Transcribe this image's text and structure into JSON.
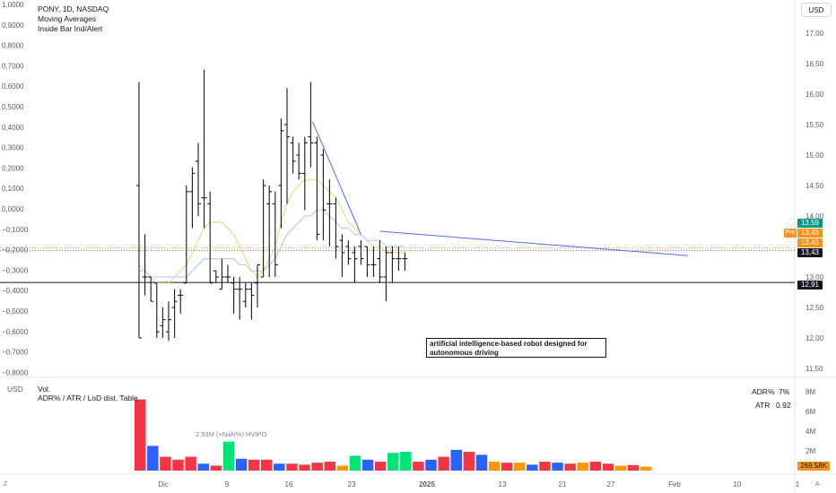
{
  "header": {
    "symbol_line": "PONY, 1D, NASDAQ",
    "indicator_1": "Moving Averages",
    "indicator_2": "Inside Bar Ind/Alert",
    "currency_button": "USD"
  },
  "annotation_text": "artificial intelligence-based robot designed for autonomous driving",
  "volume_pane": {
    "currency": "USD",
    "title": "Vol.",
    "subtitle": "ADR% / ATR / LoD dist. Table",
    "adr_label": "ADR%",
    "adr_value": "7%",
    "atr_label": "ATR",
    "atr_value": "0.92",
    "hvipo_label": "2.93M (+NaN%) HVIPO",
    "last_volume_tag": "269.58K"
  },
  "price_tags": [
    {
      "text": "13,59",
      "color": "#089981"
    },
    {
      "text": "13,48",
      "color": "#f7931a",
      "prefix": "Pre"
    },
    {
      "text": "13,45",
      "color": "#f7931a"
    },
    {
      "text": "13,43",
      "color": "#131722"
    },
    {
      "text": "12,91",
      "color": "#131722"
    }
  ],
  "colors": {
    "bar": "#131722",
    "ma_fast": "#f5d26b",
    "ma_mid": "#b5e3b0",
    "ma_slow": "#a8c6f0",
    "trendline": "#4a6cf7",
    "vol_red": "#f23645",
    "vol_blue": "#2962ff",
    "vol_green": "#00e676",
    "vol_orange": "#ff9800"
  },
  "bottom_bar": {
    "left_icon": "Z",
    "right_icon": "A"
  },
  "chart_data": [
    {
      "type": "ohlc",
      "title": "PONY, 1D, NASDAQ",
      "right_axis_ticks": [
        "17,00",
        "16,50",
        "16,00",
        "15,50",
        "15,00",
        "14,50",
        "14,00",
        "13,00",
        "12,50",
        "12,00",
        "11,50"
      ],
      "left_axis_ticks": [
        "1,0000",
        "0,9000",
        "0,8000",
        "0,7000",
        "0,6000",
        "0,5000",
        "0,4000",
        "0,3000",
        "0,2000",
        "0,1000",
        "0,0000",
        "−0,1000",
        "−0,2000",
        "−0,3000",
        "−0,4000",
        "−0,5000",
        "−0,6000",
        "−0,7000",
        "−0,8000"
      ],
      "x_tick_labels": [
        "Dic",
        "9",
        "16",
        "23",
        "2025",
        "13",
        "21",
        "27",
        "Feb",
        "10",
        "1"
      ],
      "ylim": [
        11.4,
        17.3
      ],
      "ohlc": [
        [
          14.5,
          16.2,
          12.0,
          12.0
        ],
        [
          13.0,
          13.7,
          12.7,
          13.0
        ],
        [
          13.0,
          13.0,
          12.6,
          12.6
        ],
        [
          12.9,
          12.9,
          12.0,
          12.1
        ],
        [
          12.2,
          12.5,
          12.0,
          12.3
        ],
        [
          12.1,
          12.6,
          11.95,
          12.3
        ],
        [
          12.5,
          12.8,
          12.0,
          12.6
        ],
        [
          12.7,
          12.8,
          12.4,
          12.7
        ],
        [
          12.9,
          14.5,
          12.9,
          14.4
        ],
        [
          14.4,
          14.8,
          13.8,
          14.7
        ],
        [
          14.9,
          15.2,
          14.0,
          14.2
        ],
        [
          14.3,
          16.4,
          13.8,
          14.3
        ],
        [
          14.2,
          14.4,
          12.9,
          12.9
        ],
        [
          13.1,
          13.1,
          12.9,
          13.0
        ],
        [
          12.8,
          13.3,
          12.8,
          13.0
        ],
        [
          13.0,
          13.2,
          12.9,
          13.0
        ],
        [
          12.9,
          13.0,
          12.4,
          12.8
        ],
        [
          12.8,
          13.0,
          12.3,
          12.8
        ],
        [
          12.6,
          12.9,
          12.5,
          12.8
        ],
        [
          12.8,
          12.9,
          12.3,
          12.7
        ],
        [
          12.9,
          13.2,
          12.5,
          13.2
        ],
        [
          13.0,
          14.6,
          13.0,
          14.5
        ],
        [
          14.2,
          14.5,
          13.0,
          14.4
        ],
        [
          14.2,
          14.4,
          13.0,
          13.2
        ],
        [
          14.5,
          15.6,
          13.8,
          15.4
        ],
        [
          15.5,
          16.1,
          14.2,
          15.3
        ],
        [
          15.2,
          15.3,
          14.7,
          14.9
        ],
        [
          15.0,
          15.2,
          14.6,
          14.7
        ],
        [
          14.7,
          15.3,
          14.1,
          15.2
        ],
        [
          15.3,
          16.2,
          14.8,
          15.2
        ],
        [
          15.2,
          15.3,
          13.6,
          13.7
        ],
        [
          15.0,
          15.1,
          13.6,
          14.1
        ],
        [
          14.2,
          14.6,
          13.5,
          14.2
        ],
        [
          14.2,
          14.3,
          13.3,
          13.5
        ],
        [
          13.6,
          13.7,
          13.0,
          13.4
        ],
        [
          13.5,
          13.6,
          13.2,
          13.3
        ],
        [
          13.4,
          13.5,
          12.9,
          13.3
        ],
        [
          13.5,
          13.6,
          13.2,
          13.3
        ],
        [
          13.5,
          13.5,
          13.0,
          13.2
        ],
        [
          13.2,
          13.5,
          13.0,
          13.2
        ],
        [
          13.3,
          13.6,
          12.9,
          13.0
        ],
        [
          13.0,
          13.5,
          12.6,
          13.4
        ],
        [
          13.4,
          13.5,
          12.9,
          13.3
        ],
        [
          13.3,
          13.5,
          13.1,
          13.3
        ],
        [
          13.3,
          13.4,
          13.1,
          13.3
        ]
      ],
      "horizontal_lines": [
        12.91,
        13.43,
        13.45
      ],
      "moving_average_fast": [
        13.2,
        13.1,
        13.0,
        12.9,
        12.9,
        12.9,
        13.0,
        13.1,
        13.2,
        13.4,
        13.6,
        13.8,
        13.9,
        13.9,
        13.9,
        13.8,
        13.7,
        13.5,
        13.3,
        13.1,
        13.0,
        13.1,
        13.3,
        13.5,
        13.9,
        14.2,
        14.4,
        14.5,
        14.6,
        14.6,
        14.6,
        14.5,
        14.4,
        14.3,
        14.1,
        13.9,
        13.8,
        13.7,
        13.6,
        13.5,
        13.5,
        13.4,
        13.4,
        13.4,
        13.4
      ],
      "moving_average_slow": [
        13.1,
        13.1,
        13.0,
        13.0,
        13.0,
        13.0,
        13.0,
        13.0,
        13.0,
        13.1,
        13.2,
        13.3,
        13.3,
        13.3,
        13.3,
        13.3,
        13.3,
        13.2,
        13.2,
        13.1,
        13.1,
        13.1,
        13.2,
        13.3,
        13.5,
        13.7,
        13.8,
        13.9,
        14.0,
        14.0,
        14.1,
        14.1,
        14.0,
        13.9,
        13.8,
        13.8,
        13.7,
        13.7,
        13.6,
        13.6,
        13.6,
        13.5,
        13.5,
        13.5,
        13.5
      ]
    },
    {
      "type": "bar",
      "title": "Vol.",
      "y_axis_ticks": [
        "8M",
        "6M",
        "4M",
        "2M"
      ],
      "ylim": [
        0,
        8.8
      ],
      "values": [
        7.2,
        2.5,
        1.4,
        1.1,
        1.4,
        0.7,
        0.5,
        2.93,
        1.2,
        1.1,
        1.1,
        0.7,
        0.7,
        0.6,
        0.8,
        0.9,
        0.5,
        1.5,
        1.1,
        0.9,
        1.8,
        1.9,
        0.9,
        1.1,
        1.4,
        2.1,
        1.9,
        1.6,
        0.9,
        0.8,
        0.8,
        0.6,
        0.9,
        0.8,
        0.7,
        0.8,
        0.9,
        0.7,
        0.5,
        0.55,
        0.4
      ],
      "bar_colors": [
        "red",
        "blue",
        "red",
        "red",
        "red",
        "blue",
        "red",
        "green",
        "blue",
        "red",
        "red",
        "blue",
        "red",
        "red",
        "red",
        "red",
        "orange",
        "green",
        "blue",
        "red",
        "green",
        "green",
        "red",
        "blue",
        "red",
        "blue",
        "red",
        "blue",
        "orange",
        "red",
        "orange",
        "blue",
        "red",
        "blue",
        "red",
        "orange",
        "red",
        "red",
        "orange",
        "red",
        "orange"
      ]
    }
  ]
}
